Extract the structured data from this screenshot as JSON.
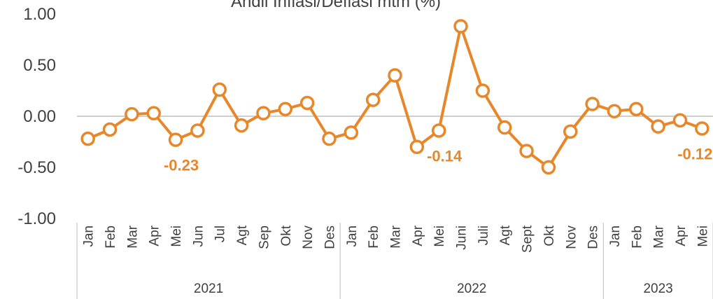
{
  "chart_data": {
    "type": "line",
    "title": "Andil Inflasi/Deflasi mtm (%)",
    "categories": [
      "Jan",
      "Feb",
      "Mar",
      "Apr",
      "Mei",
      "Jun",
      "Jul",
      "Agt",
      "Sep",
      "Okt",
      "Nov",
      "Des",
      "Jan",
      "Feb",
      "Mar",
      "Apr",
      "Mei",
      "Juni",
      "Juli",
      "Agt",
      "Sept",
      "Okt",
      "Nov",
      "Des",
      "Jan",
      "Feb",
      "Mar",
      "Apr",
      "Mei"
    ],
    "groups": [
      {
        "name": "2021",
        "count": 12
      },
      {
        "name": "2022",
        "count": 12
      },
      {
        "name": "2023",
        "count": 5
      }
    ],
    "series": [
      {
        "name": "Andil Inflasi/Deflasi mtm",
        "color": "#e8862a",
        "values": [
          -0.22,
          -0.13,
          0.02,
          0.03,
          -0.23,
          -0.14,
          0.26,
          -0.09,
          0.03,
          0.07,
          0.13,
          -0.22,
          -0.16,
          0.16,
          0.4,
          -0.3,
          -0.14,
          0.88,
          0.25,
          -0.11,
          -0.34,
          -0.5,
          -0.15,
          0.12,
          0.05,
          0.07,
          -0.1,
          -0.04,
          -0.12
        ],
        "value_labels": [
          null,
          null,
          null,
          null,
          "-0.23",
          null,
          null,
          null,
          null,
          null,
          null,
          null,
          null,
          null,
          null,
          null,
          "-0.14",
          null,
          null,
          null,
          null,
          null,
          null,
          null,
          null,
          null,
          null,
          null,
          "-0.12"
        ]
      }
    ],
    "ylim": [
      -1,
      1
    ],
    "yticks": [
      {
        "value": -1,
        "label": "-1.00"
      },
      {
        "value": -0.5,
        "label": "-0.50"
      },
      {
        "value": 0,
        "label": "0.00"
      },
      {
        "value": 0.5,
        "label": "0.50"
      },
      {
        "value": 1,
        "label": "1.00"
      }
    ]
  }
}
